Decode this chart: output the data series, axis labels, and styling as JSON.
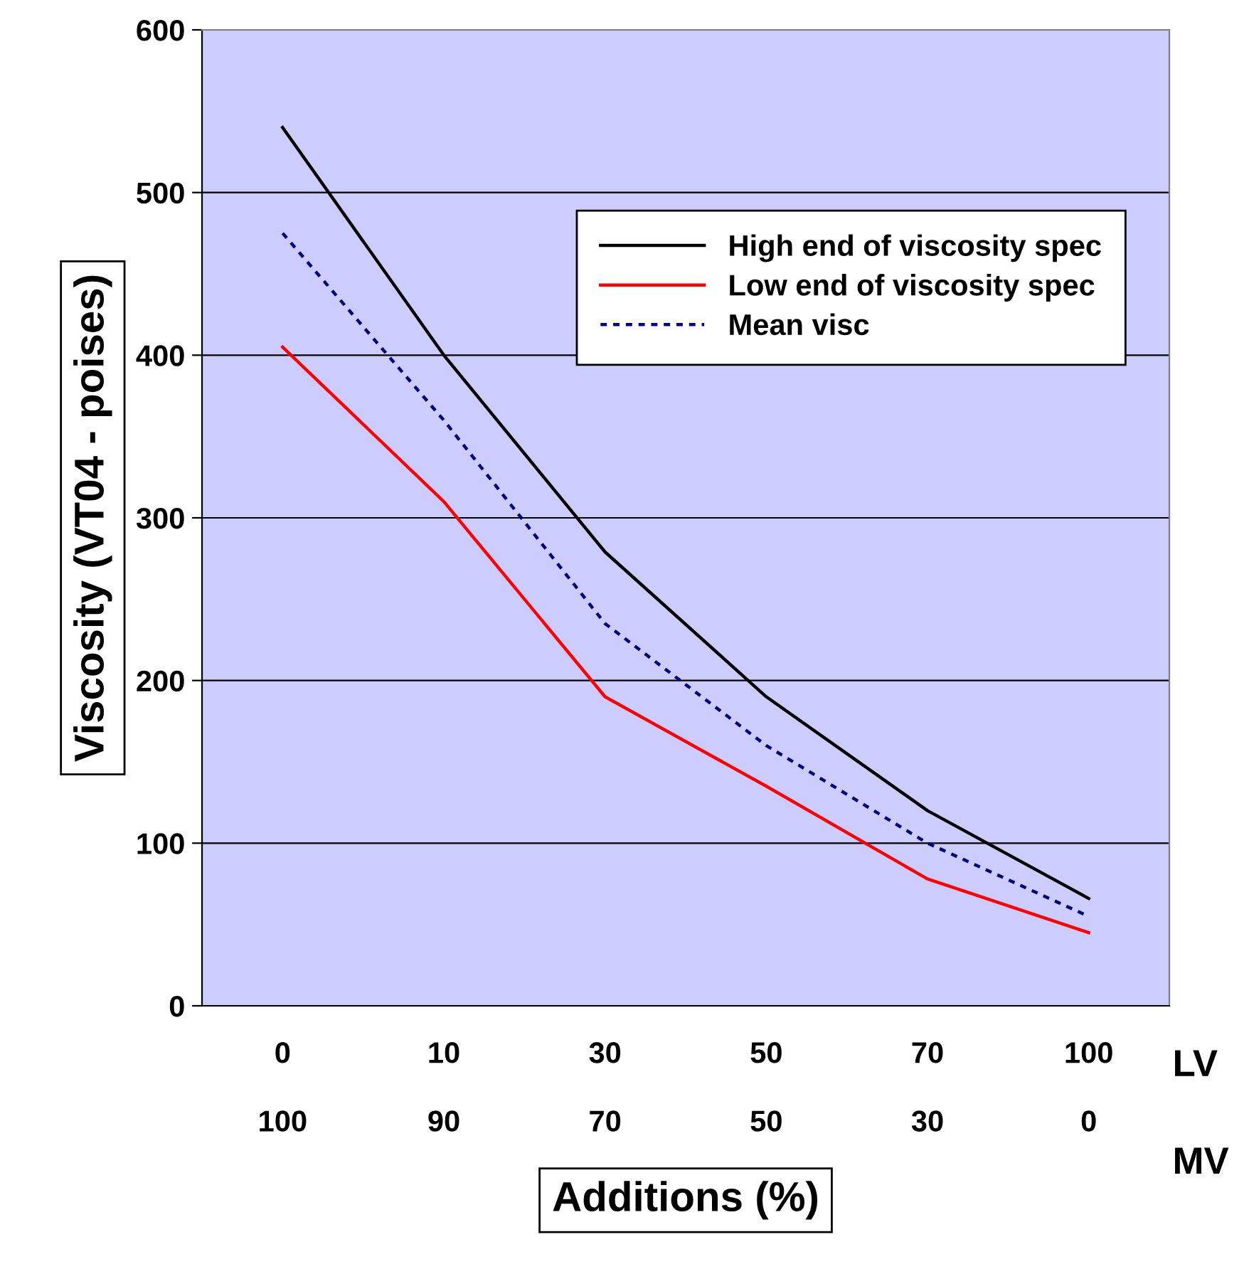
{
  "chart_data": {
    "type": "line",
    "xlabel": "Additions (%)",
    "ylabel": "Viscosity (VT04 - poises)",
    "categories": [
      "0\n100",
      "10\n90",
      "30\n70",
      "50\n50",
      "70\n30",
      "100\n0"
    ],
    "series": [
      {
        "name": "High end of viscosity spec",
        "color": "#000000",
        "values": [
          540,
          400,
          279,
          190,
          120,
          66
        ],
        "line_style": "solid"
      },
      {
        "name": "Low end of viscosity spec",
        "color": "#ff0000",
        "values": [
          405,
          310,
          190,
          135,
          78,
          45
        ],
        "line_style": "solid"
      },
      {
        "name": "Mean visc",
        "color": "#000080",
        "values": [
          475,
          360,
          235,
          160,
          100,
          55
        ],
        "line_style": "dotted"
      }
    ],
    "annotations": [
      "LV",
      "MV"
    ],
    "ylim": [
      0,
      600
    ],
    "yticks": [
      0,
      100,
      200,
      300,
      400,
      500,
      600
    ],
    "grid": "y",
    "legend": "top right",
    "marker": "none"
  }
}
